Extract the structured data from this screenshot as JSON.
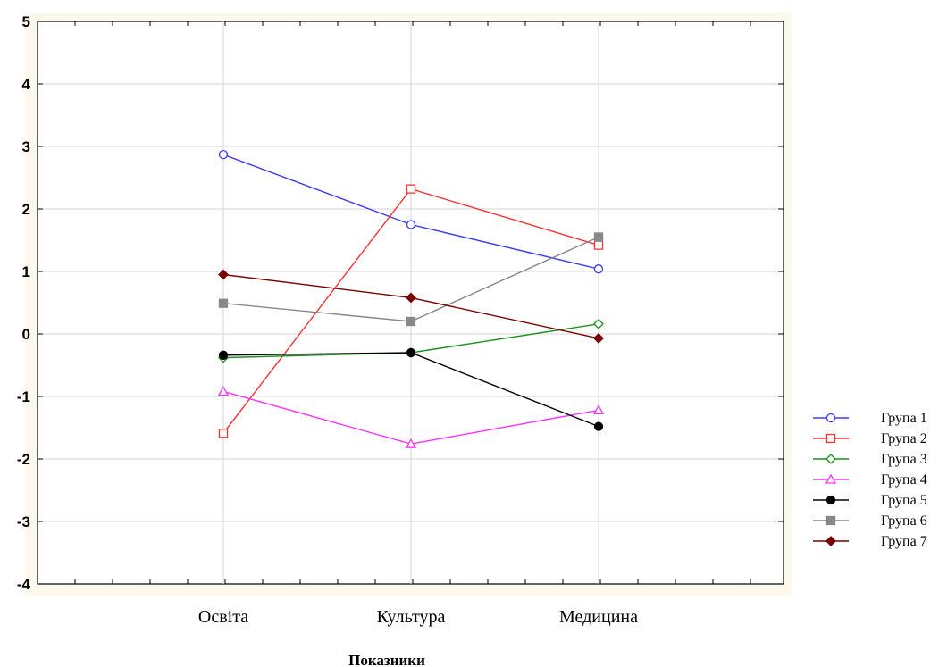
{
  "chart_data": {
    "type": "line",
    "title": "",
    "xlabel": "Показники",
    "ylabel": "",
    "categories": [
      "Освіта",
      "Культура",
      "Медицина"
    ],
    "ylim": [
      -4,
      5
    ],
    "yticks": [
      5,
      4,
      3,
      2,
      1,
      0,
      -1,
      -2,
      -3,
      -4
    ],
    "grid": true,
    "legend_position": "right",
    "series": [
      {
        "name": "Група 1",
        "color": "#3a3aff",
        "marker": "circle-open",
        "values": [
          2.87,
          1.75,
          1.04
        ]
      },
      {
        "name": "Група 2",
        "color": "#ff3333",
        "marker": "square-open",
        "values": [
          -1.59,
          2.32,
          1.42
        ]
      },
      {
        "name": "Група 3",
        "color": "#1f8f1f",
        "marker": "diamond-open",
        "values": [
          -0.38,
          -0.3,
          0.16
        ]
      },
      {
        "name": "Група 4",
        "color": "#ff33ff",
        "marker": "triangle-open",
        "values": [
          -0.92,
          -1.76,
          -1.22
        ]
      },
      {
        "name": "Група 5",
        "color": "#000000",
        "marker": "circle-filled",
        "values": [
          -0.34,
          -0.3,
          -1.48
        ]
      },
      {
        "name": "Група 6",
        "color": "#888888",
        "marker": "square-filled",
        "values": [
          0.49,
          0.2,
          1.55
        ]
      },
      {
        "name": "Група 7",
        "color": "#7a0000",
        "marker": "diamond-filled",
        "values": [
          0.95,
          0.58,
          -0.07
        ]
      }
    ]
  }
}
